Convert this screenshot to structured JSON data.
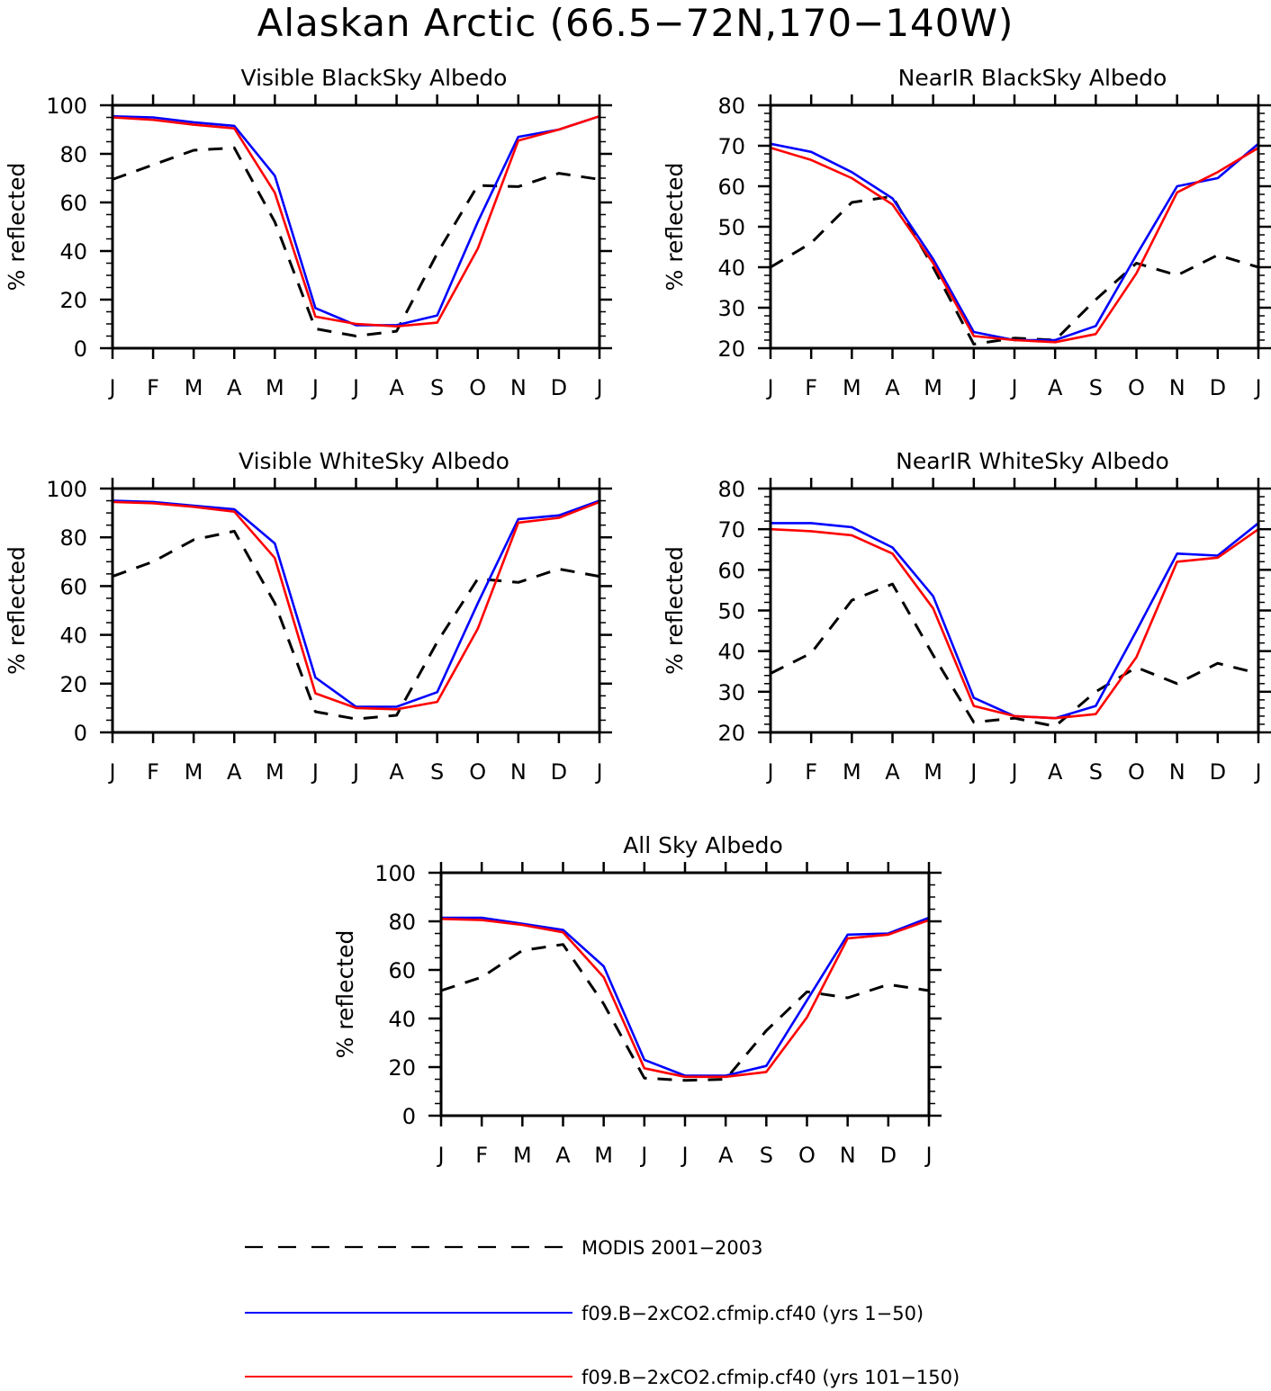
{
  "figure_title": "Alaskan Arctic (66.5−72N,170−140W)",
  "colors": {
    "modis": "#000000",
    "run_early": "#0000ff",
    "run_late": "#ff0000"
  },
  "legend": [
    {
      "label": "MODIS 2001−2003",
      "color": "#000000",
      "style": "dashed"
    },
    {
      "label": "f09.B−2xCO2.cfmip.cf40 (yrs 1−50)",
      "color": "#0000ff",
      "style": "solid"
    },
    {
      "label": "f09.B−2xCO2.cfmip.cf40 (yrs 101−150)",
      "color": "#ff0000",
      "style": "solid"
    }
  ],
  "chart_data": [
    {
      "type": "line",
      "title": "Visible BlackSky Albedo",
      "ylabel": "% reflected",
      "ylim": [
        0,
        100
      ],
      "yticks": [
        0,
        20,
        40,
        60,
        80,
        100
      ],
      "categories": [
        "J",
        "F",
        "M",
        "A",
        "M",
        "J",
        "J",
        "A",
        "S",
        "O",
        "N",
        "D",
        "J"
      ],
      "series": [
        {
          "name": "MODIS 2001−2003",
          "values": [
            69.5,
            75.5,
            81.5,
            82.5,
            52,
            8,
            5,
            7,
            39,
            67,
            66.5,
            72,
            69.5
          ]
        },
        {
          "name": "f09.B−2xCO2.cfmip.cf40 (yrs 1−50)",
          "values": [
            95.5,
            95,
            93,
            91.5,
            71,
            16.5,
            9.5,
            9.5,
            13.5,
            52,
            87,
            90,
            95.5
          ]
        },
        {
          "name": "f09.B−2xCO2.cfmip.cf40 (yrs 101−150)",
          "values": [
            95,
            94,
            92,
            90.5,
            64,
            13,
            10,
            9,
            10.5,
            41,
            85.5,
            90,
            95.5
          ]
        }
      ]
    },
    {
      "type": "line",
      "title": "NearIR BlackSky Albedo",
      "ylabel": "% reflected",
      "ylim": [
        20,
        80
      ],
      "yticks": [
        20,
        30,
        40,
        50,
        60,
        70,
        80
      ],
      "categories": [
        "J",
        "F",
        "M",
        "A",
        "M",
        "J",
        "J",
        "A",
        "S",
        "O",
        "N",
        "D",
        "J"
      ],
      "series": [
        {
          "name": "MODIS 2001−2003",
          "values": [
            40,
            46,
            56,
            57.5,
            40,
            21,
            22.5,
            22,
            32,
            41,
            38,
            43,
            40
          ]
        },
        {
          "name": "f09.B−2xCO2.cfmip.cf40 (yrs 1−50)",
          "values": [
            70.5,
            68.5,
            63.5,
            57,
            42,
            24,
            22,
            22,
            25.5,
            43,
            60,
            62,
            70.5
          ]
        },
        {
          "name": "f09.B−2xCO2.cfmip.cf40 (yrs 101−150)",
          "values": [
            69.5,
            66.5,
            62,
            55.5,
            41,
            23,
            22,
            21.5,
            23.5,
            38.5,
            58.5,
            63.5,
            69.5
          ]
        }
      ]
    },
    {
      "type": "line",
      "title": "Visible WhiteSky Albedo",
      "ylabel": "% reflected",
      "ylim": [
        0,
        100
      ],
      "yticks": [
        0,
        20,
        40,
        60,
        80,
        100
      ],
      "categories": [
        "J",
        "F",
        "M",
        "A",
        "M",
        "J",
        "J",
        "A",
        "S",
        "O",
        "N",
        "D",
        "J"
      ],
      "series": [
        {
          "name": "MODIS 2001−2003",
          "values": [
            64,
            70,
            79,
            82.5,
            53,
            8.5,
            5.5,
            7,
            37,
            63,
            61.5,
            67,
            64
          ]
        },
        {
          "name": "f09.B−2xCO2.cfmip.cf40 (yrs 1−50)",
          "values": [
            95,
            94.5,
            93,
            91.5,
            77.5,
            22.5,
            10.5,
            10.5,
            16.5,
            53,
            87.5,
            89,
            95
          ]
        },
        {
          "name": "f09.B−2xCO2.cfmip.cf40 (yrs 101−150)",
          "values": [
            94.5,
            94,
            92.5,
            90.5,
            71.5,
            16,
            10,
            9.5,
            12.5,
            42.5,
            86,
            88,
            94.5
          ]
        }
      ]
    },
    {
      "type": "line",
      "title": "NearIR WhiteSky Albedo",
      "ylabel": "% reflected",
      "ylim": [
        20,
        80
      ],
      "yticks": [
        20,
        30,
        40,
        50,
        60,
        70,
        80
      ],
      "categories": [
        "J",
        "F",
        "M",
        "A",
        "M",
        "J",
        "J",
        "A",
        "S",
        "O",
        "N",
        "D",
        "J"
      ],
      "series": [
        {
          "name": "MODIS 2001−2003",
          "values": [
            34.5,
            39.5,
            52.5,
            56.5,
            39,
            22.5,
            23.5,
            21.5,
            30,
            36,
            32,
            37,
            34.5
          ]
        },
        {
          "name": "f09.B−2xCO2.cfmip.cf40 (yrs 1−50)",
          "values": [
            71.5,
            71.5,
            70.5,
            65.5,
            53.5,
            28.5,
            24,
            23.5,
            26.5,
            45,
            64,
            63.5,
            71.5
          ]
        },
        {
          "name": "f09.B−2xCO2.cfmip.cf40 (yrs 101−150)",
          "values": [
            70,
            69.5,
            68.5,
            64,
            50.5,
            26.5,
            24,
            23.5,
            24.5,
            38.5,
            62,
            63,
            70
          ]
        }
      ]
    },
    {
      "type": "line",
      "title": "All Sky Albedo",
      "ylabel": "% reflected",
      "ylim": [
        0,
        100
      ],
      "yticks": [
        0,
        20,
        40,
        60,
        80,
        100
      ],
      "categories": [
        "J",
        "F",
        "M",
        "A",
        "M",
        "J",
        "J",
        "A",
        "S",
        "O",
        "N",
        "D",
        "J"
      ],
      "series": [
        {
          "name": "MODIS 2001−2003",
          "values": [
            51.5,
            57,
            68,
            70.5,
            46,
            15.5,
            14.5,
            15,
            35,
            51,
            48.5,
            54,
            51.5
          ]
        },
        {
          "name": "f09.B−2xCO2.cfmip.cf40 (yrs 1−50)",
          "values": [
            81.5,
            81.5,
            79,
            76.5,
            61.5,
            23,
            16.5,
            16.5,
            20.5,
            47.5,
            74.5,
            75,
            81.5
          ]
        },
        {
          "name": "f09.B−2xCO2.cfmip.cf40 (yrs 101−150)",
          "values": [
            81,
            80.5,
            78.5,
            75.5,
            57,
            19.5,
            16,
            16,
            18,
            40.5,
            73,
            74.5,
            80.5
          ]
        }
      ]
    }
  ]
}
